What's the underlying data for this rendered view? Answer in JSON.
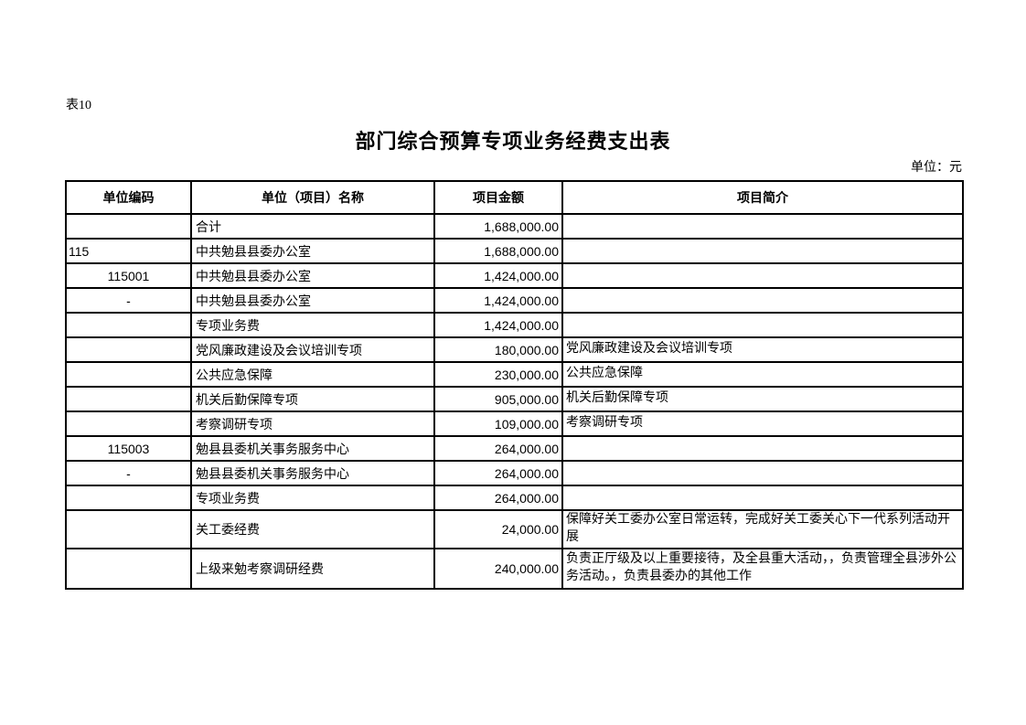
{
  "page": {
    "label": "表10",
    "title": "部门综合预算专项业务经费支出表",
    "unit_note": "单位：元"
  },
  "table": {
    "headers": [
      "单位编码",
      "单位（项目）名称",
      "项目金额",
      "项目简介"
    ],
    "rows": [
      {
        "code": "",
        "code_align": "center",
        "name": "合计",
        "amount": "1,688,000.00",
        "desc": ""
      },
      {
        "code": "115",
        "code_align": "left",
        "name": "中共勉县县委办公室",
        "amount": "1,688,000.00",
        "desc": ""
      },
      {
        "code": "115001",
        "code_align": "center",
        "name": "中共勉县县委办公室",
        "amount": "1,424,000.00",
        "desc": ""
      },
      {
        "code": "-",
        "code_align": "center",
        "name": "中共勉县县委办公室",
        "amount": "1,424,000.00",
        "desc": ""
      },
      {
        "code": "",
        "code_align": "center",
        "name": "专项业务费",
        "amount": "1,424,000.00",
        "desc": ""
      },
      {
        "code": "",
        "code_align": "center",
        "name": "党风廉政建设及会议培训专项",
        "amount": "180,000.00",
        "desc": "党风廉政建设及会议培训专项"
      },
      {
        "code": "",
        "code_align": "center",
        "name": "公共应急保障",
        "amount": "230,000.00",
        "desc": "公共应急保障"
      },
      {
        "code": "",
        "code_align": "center",
        "name": "机关后勤保障专项",
        "amount": "905,000.00",
        "desc": "机关后勤保障专项"
      },
      {
        "code": "",
        "code_align": "center",
        "name": "考察调研专项",
        "amount": "109,000.00",
        "desc": "考察调研专项"
      },
      {
        "code": "115003",
        "code_align": "center",
        "name": "勉县县委机关事务服务中心",
        "amount": "264,000.00",
        "desc": ""
      },
      {
        "code": "-",
        "code_align": "center",
        "name": "勉县县委机关事务服务中心",
        "amount": "264,000.00",
        "desc": ""
      },
      {
        "code": "",
        "code_align": "center",
        "name": "专项业务费",
        "amount": "264,000.00",
        "desc": ""
      },
      {
        "code": "",
        "code_align": "center",
        "name": "关工委经费",
        "amount": "24,000.00",
        "desc": "保障好关工委办公室日常运转，完成好关工委关心下一代系列活动开展"
      },
      {
        "code": "",
        "code_align": "center",
        "name": "上级来勉考察调研经费",
        "amount": "240,000.00",
        "desc": "负责正厅级及以上重要接待，及全县重大活动，，负责管理全县涉外公务活动。，负责县委办的其他工作"
      }
    ]
  }
}
